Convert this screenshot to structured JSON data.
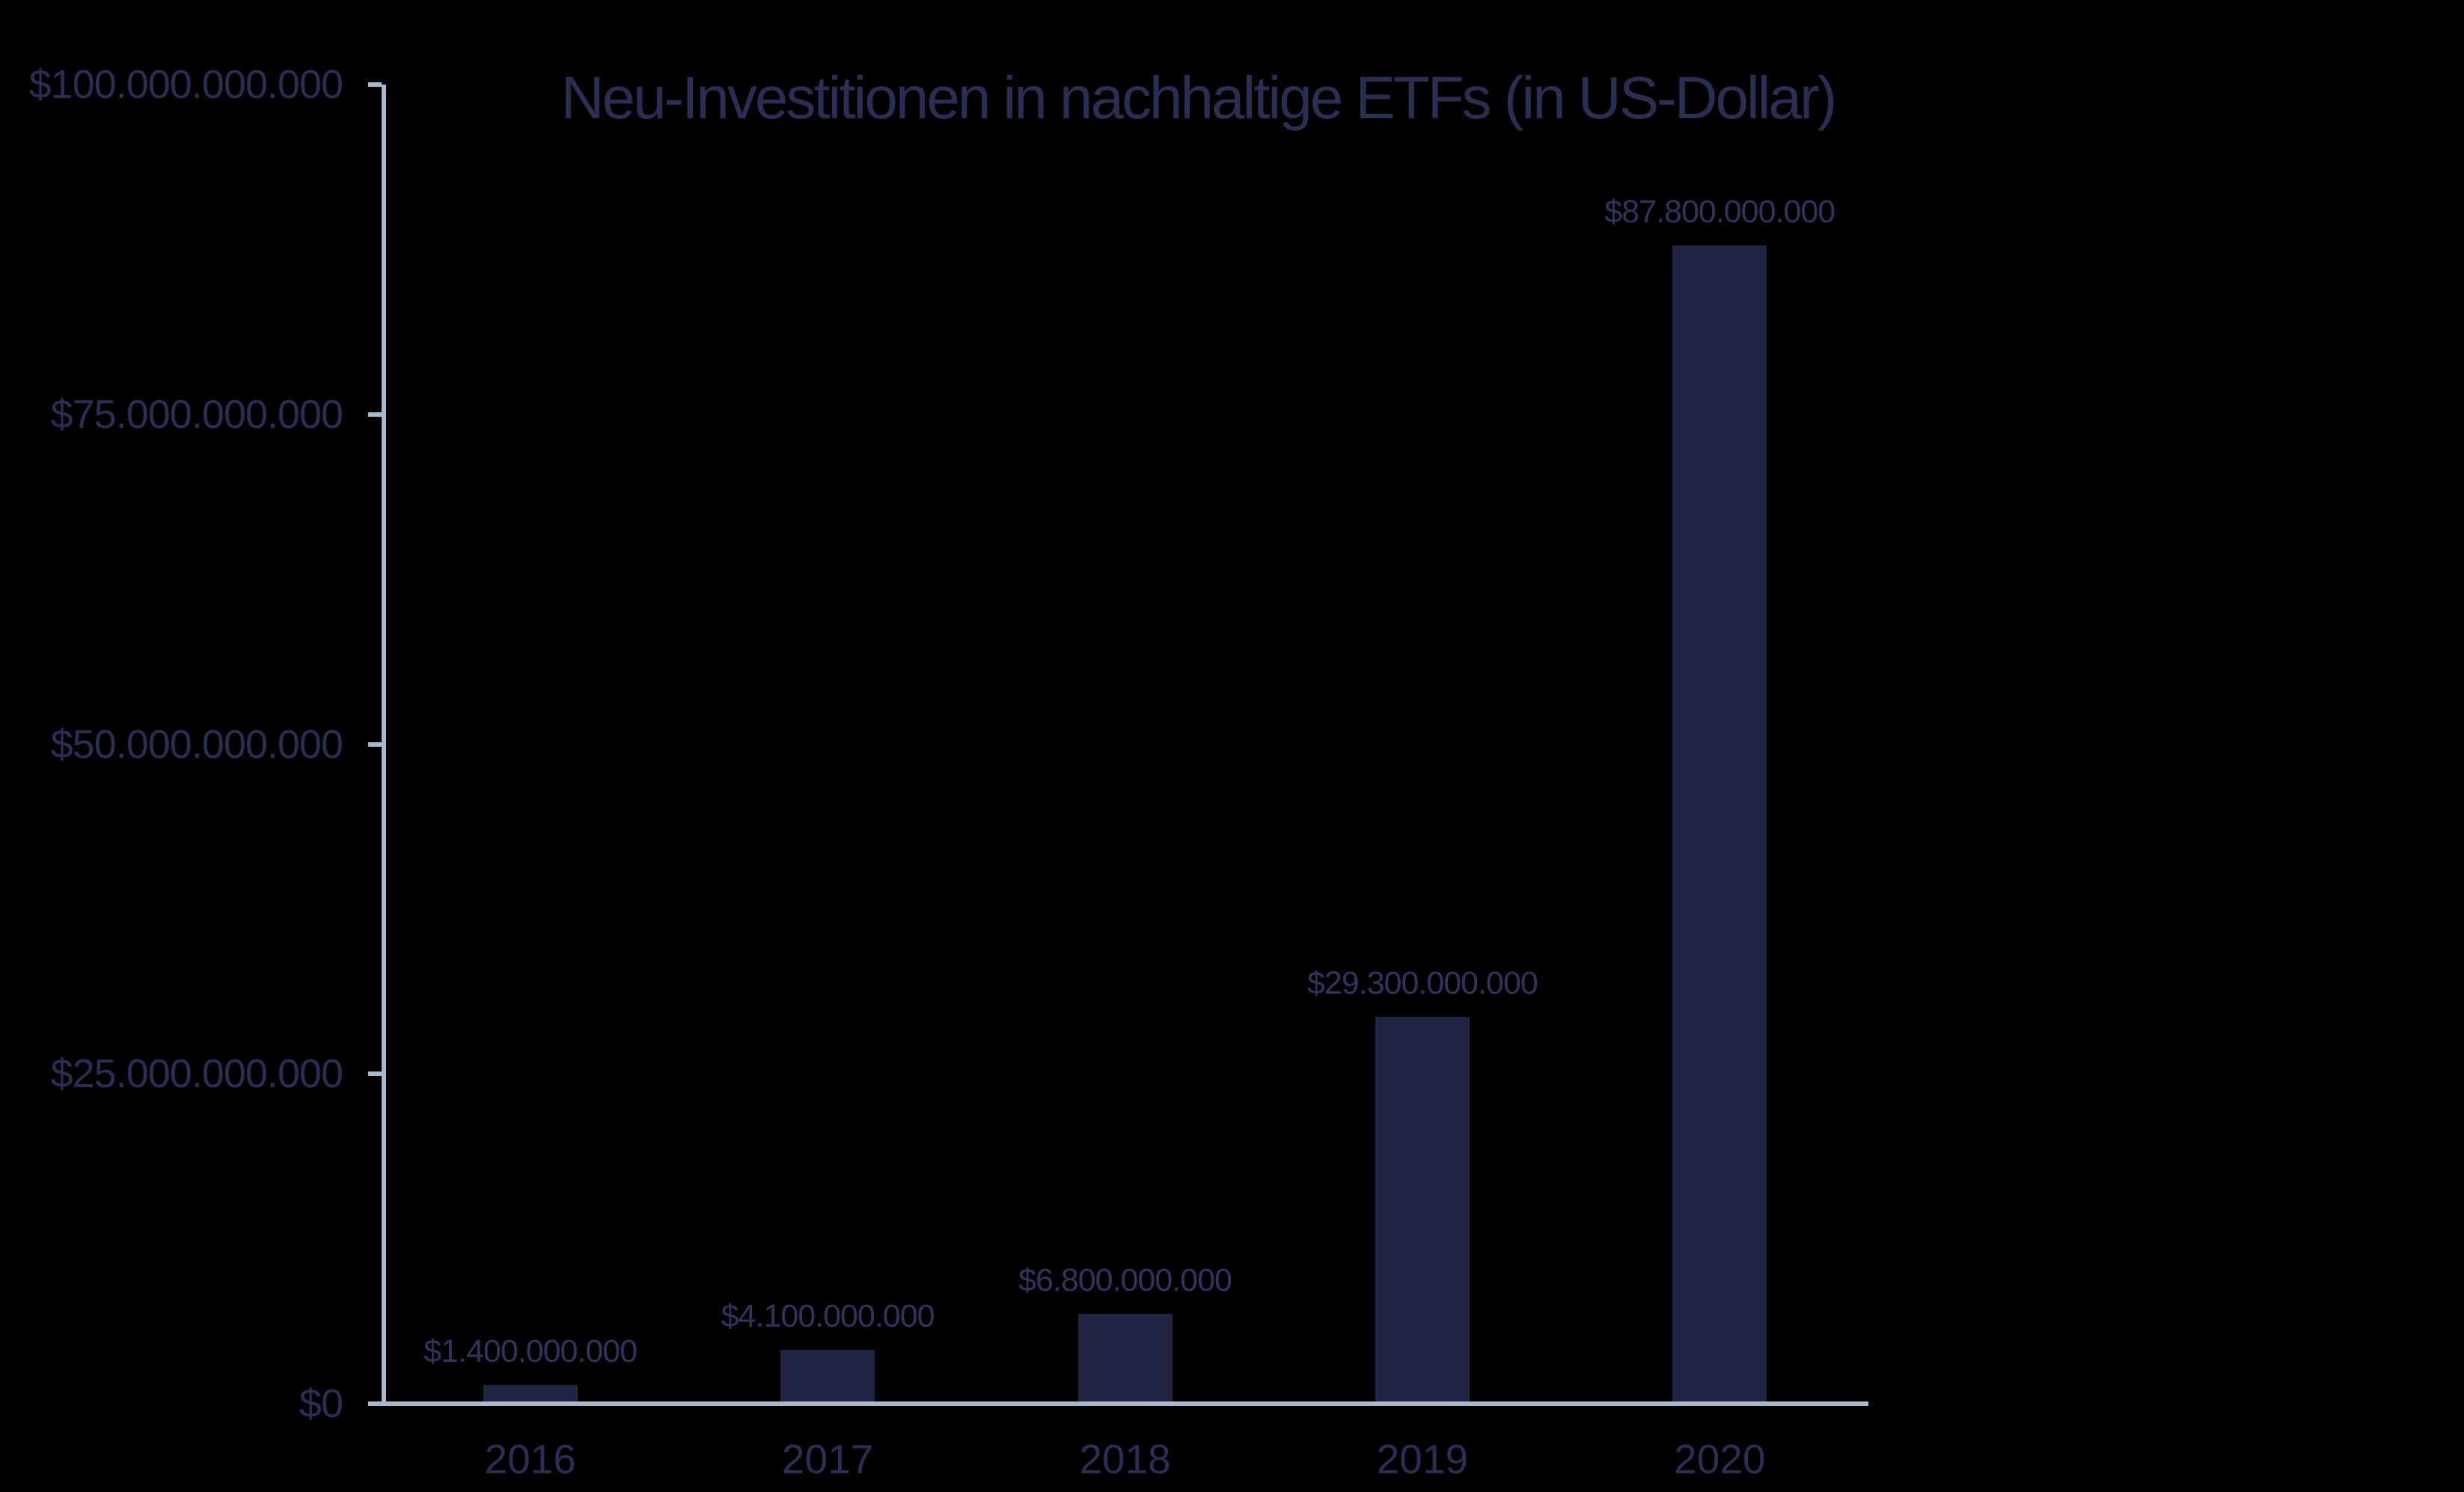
{
  "chart_data": {
    "type": "bar",
    "title": "Neu-Investitionen in nachhaltige ETFs (in US-Dollar)",
    "categories": [
      "2016",
      "2017",
      "2018",
      "2019",
      "2020"
    ],
    "values": [
      1400000000,
      4100000000,
      6800000000,
      29300000000,
      87800000000
    ],
    "bar_labels": [
      "$1.400.000.000",
      "$4.100.000.000",
      "$6.800.000.000",
      "$29.300.000.000",
      "$87.800.000.000"
    ],
    "y_ticks": [
      {
        "value": 0,
        "label": "$0"
      },
      {
        "value": 25000000000,
        "label": "$25.000.000.000"
      },
      {
        "value": 50000000000,
        "label": "$50.000.000.000"
      },
      {
        "value": 75000000000,
        "label": "$75.000.000.000"
      },
      {
        "value": 100000000000,
        "label": "$100.000.000.000"
      }
    ],
    "ylim": [
      0,
      100000000000
    ],
    "xlabel": "",
    "ylabel": "",
    "grid": false,
    "legend": null,
    "number_format": "de-DE thousands separator, USD prefix",
    "colors": {
      "background": "#000000",
      "bar": "#212342",
      "axis": "#a8b8cd",
      "title_text": "#2b2e53",
      "tick_label_text": "#2b2e53",
      "year_label_text": "#2b2e53",
      "value_label_text": "#30345c"
    }
  }
}
